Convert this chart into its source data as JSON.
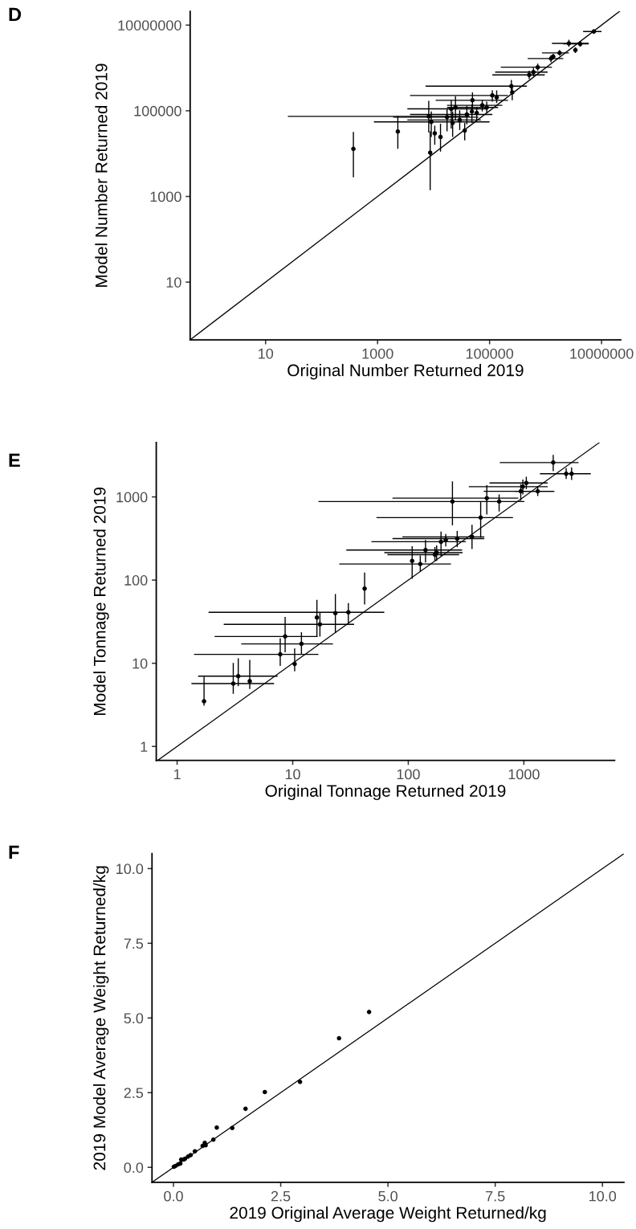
{
  "chart_data": [
    {
      "type": "scatter",
      "title": "D",
      "xlabel": "Original Number Returned 2019",
      "ylabel": "Model Number Returned 2019",
      "log": "xy",
      "xlim": [
        0.45,
        22000000
      ],
      "ylim": [
        0.45,
        21000000
      ],
      "xticks": [
        10,
        1000,
        100000,
        10000000
      ],
      "yticks": [
        10,
        1000,
        100000,
        10000000
      ],
      "series": [
        {
          "color": "#000000",
          "marker": "circle",
          "x": [
            370,
            2300,
            8700,
            10500,
            13300,
            8200,
            9100,
            36000,
            17400,
            20700,
            24600,
            21900,
            29300,
            39300,
            49500,
            48400,
            74000,
            89000,
            59000,
            112000,
            134000,
            245000,
            254000,
            511000,
            608000,
            724000,
            1250000,
            1370000,
            1780000,
            2610000,
            4160000,
            3410000,
            7280000
          ],
          "values": [
            12900,
            32700,
            10500,
            29800,
            24500,
            74000,
            55000,
            34700,
            71000,
            111000,
            120000,
            52000,
            61000,
            82000,
            176000,
            96000,
            134000,
            120000,
            89000,
            228000,
            205000,
            375000,
            269000,
            687000,
            800000,
            1040000,
            1660000,
            1840000,
            2240000,
            3750000,
            3640000,
            2610000,
            7100000
          ],
          "errors": [
            [
              2800,
              32000
            ],
            [
              13000,
              76000
            ],
            [
              1400,
              33000
            ],
            [
              16000,
              45000
            ],
            [
              11100,
              50000
            ],
            [
              31000,
              170000
            ],
            [
              24500,
              96000
            ],
            [
              20400,
              52000
            ],
            [
              33000,
              111000
            ],
            [
              38600,
              176000
            ],
            [
              61000,
              220000
            ],
            [
              24500,
              96000
            ],
            [
              35700,
              103000
            ],
            [
              48400,
              130000
            ],
            [
              111000,
              269000
            ],
            [
              52000,
              140000
            ],
            [
              96000,
              176000
            ],
            [
              89000,
              163000
            ],
            [
              61000,
              120000
            ],
            [
              163000,
              299000
            ],
            [
              151000,
              299000
            ],
            [
              277000,
              524000
            ],
            [
              176000,
              348000
            ],
            [
              547000,
              863000
            ],
            [
              637000,
              1000000
            ],
            [
              863000,
              1260000
            ],
            [
              1360000,
              1990000
            ],
            [
              1580000,
              2140000
            ],
            [
              1930000,
              2610000
            ],
            [
              3130000,
              4570000
            ],
            [
              3130000,
              4240000
            ],
            [
              2240000,
              3020000
            ],
            [
              6280000,
              8000000
            ]
          ],
          "xerrors": [
            null,
            null,
            null,
            null,
            null,
            [
              25,
              44000
            ],
            [
              860,
              100000
            ],
            null,
            [
              1900,
              63000
            ],
            [
              3400,
              94000
            ],
            [
              17400,
              142000
            ],
            null,
            [
              3400,
              70000
            ],
            [
              3800,
              112000
            ],
            [
              10900,
              213000
            ],
            null,
            [
              17400,
              169000
            ],
            null,
            null,
            [
              3800,
              213000
            ],
            null,
            [
              7200,
              465000
            ],
            null,
            [
              112000,
              968000
            ],
            [
              126000,
              1090000
            ],
            [
              159000,
              1300000
            ],
            [
              481000,
              2070000
            ],
            null,
            [
              863000,
              2610000
            ],
            [
              1300000,
              5900000
            ],
            [
              2070000,
              5900000
            ],
            null,
            [
              4680000,
              9980000
            ]
          ]
        },
        {
          "type": "line",
          "color": "#000000",
          "x": [
            0.45,
            21000000
          ],
          "values": [
            0.45,
            21000000
          ]
        }
      ]
    },
    {
      "type": "scatter",
      "title": "E",
      "xlabel": "Original Tonnage Returned 2019",
      "ylabel": "Model Tonnage Returned 2019",
      "log": "xy",
      "xlim": [
        0.66,
        6100
      ],
      "ylim": [
        0.68,
        4500
      ],
      "xticks": [
        1,
        10,
        100,
        1000
      ],
      "yticks": [
        1,
        10,
        100,
        1000
      ],
      "series": [
        {
          "color": "#000000",
          "marker": "circle",
          "x": [
            1.71,
            3.06,
            3.38,
            4.25,
            7.8,
            8.6,
            10.4,
            11.9,
            16.2,
            17.2,
            23.4,
            30.3,
            41.9,
            108,
            127,
            141,
            170,
            176,
            192,
            211,
            265,
            356,
            423,
            241,
            478,
            611,
            940,
            980,
            1050,
            1318,
            1795,
            2323,
            2588
          ],
          "values": [
            3.5,
            5.7,
            7.0,
            6.1,
            12.8,
            21,
            9.8,
            17.1,
            35.5,
            29.4,
            40,
            41,
            79,
            170,
            156,
            230,
            202,
            214,
            289,
            304,
            315,
            331,
            564,
            879,
            966,
            879,
            1167,
            1327,
            1469,
            1167,
            2588,
            1901,
            1901
          ],
          "errors": [
            [
              3.1,
              6.9
            ],
            [
              4.3,
              10.1
            ],
            [
              5.3,
              11.5
            ],
            [
              4.9,
              11.0
            ],
            [
              9.3,
              20
            ],
            [
              13.6,
              36
            ],
            [
              8.0,
              15.1
            ],
            [
              12.8,
              23.7
            ],
            [
              20.9,
              58
            ],
            [
              20.9,
              41
            ],
            [
              23.3,
              68
            ],
            [
              30,
              53
            ],
            [
              51,
              123
            ],
            [
              104,
              256
            ],
            [
              126,
              198
            ],
            [
              163,
              304
            ],
            [
              167,
              250
            ],
            [
              170,
              261
            ],
            [
              193,
              384
            ],
            [
              254,
              358
            ],
            [
              250,
              390
            ],
            [
              236,
              462
            ],
            [
              323,
              865
            ],
            [
              455,
              1535
            ],
            [
              614,
              1384
            ],
            [
              668,
              1072
            ],
            [
              902,
              1419
            ],
            [
              1072,
              1614
            ],
            [
              1239,
              1746
            ],
            [
              1026,
              1349
            ],
            [
              2037,
              3206
            ],
            [
              1644,
              2218
            ],
            [
              1600,
              2254
            ]
          ],
          "xerrors": [
            null,
            [
              1.33,
              6.9
            ],
            [
              1.52,
              7.4
            ],
            null,
            [
              1.4,
              16.7
            ],
            [
              2.11,
              16.4
            ],
            null,
            [
              3.59,
              22.3
            ],
            null,
            [
              2.53,
              34
            ],
            null,
            [
              1.87,
              62
            ],
            null,
            null,
            [
              25.3,
              234
            ],
            [
              29.1,
              292
            ],
            [
              66,
              275
            ],
            [
              62,
              295
            ],
            [
              48,
              315
            ],
            null,
            [
              73,
              455
            ],
            [
              89,
              455
            ],
            [
              53,
              805
            ],
            [
              16.7,
              1010
            ],
            [
              73,
              895
            ],
            null,
            [
              449,
              1815
            ],
            [
              334,
              1607
            ],
            [
              505,
              1607
            ],
            [
              832,
              1837
            ],
            [
              619,
              2972
            ],
            [
              1377,
              3793
            ],
            null
          ]
        },
        {
          "type": "line",
          "color": "#000000",
          "x": [
            0.68,
            4500
          ],
          "values": [
            0.68,
            4500
          ]
        }
      ]
    },
    {
      "type": "scatter",
      "title": "F",
      "xlabel": "2019 Original Average Weight Returned/kg",
      "ylabel": "2019 Model Average Weight Returned/kg",
      "xlim": [
        -0.5,
        10.5
      ],
      "ylim": [
        -0.5,
        10.5
      ],
      "xticks": [
        {
          "value": 0,
          "label": "0.0"
        },
        {
          "value": 2.5,
          "label": "2.5"
        },
        {
          "value": 5,
          "label": "5.0"
        },
        {
          "value": 7.5,
          "label": "7.5"
        },
        {
          "value": 10,
          "label": "10.0"
        }
      ],
      "yticks": [
        {
          "value": 0,
          "label": "0.0"
        },
        {
          "value": 2.5,
          "label": "2.5"
        },
        {
          "value": 5,
          "label": "5.0"
        },
        {
          "value": 7.5,
          "label": "7.5"
        },
        {
          "value": 10,
          "label": "10.0"
        }
      ],
      "series": [
        {
          "color": "#000000",
          "marker": "circle",
          "x": [
            4.56,
            3.86,
            2.95,
            2.13,
            1.68,
            1.37,
            1.01,
            0.93,
            0.73,
            0.75,
            0.68,
            0.5,
            0.4,
            0.34,
            0.27,
            0.24,
            0.18,
            0.16,
            0.11,
            0.05,
            0.01
          ],
          "values": [
            5.2,
            4.32,
            2.86,
            2.52,
            1.96,
            1.32,
            1.33,
            0.93,
            0.82,
            0.74,
            0.72,
            0.54,
            0.41,
            0.36,
            0.29,
            0.26,
            0.26,
            0.13,
            0.1,
            0.05,
            0.02
          ]
        },
        {
          "type": "line",
          "color": "#000000",
          "x": [
            -0.5,
            10.5
          ],
          "values": [
            -0.5,
            10.5
          ]
        }
      ]
    }
  ]
}
